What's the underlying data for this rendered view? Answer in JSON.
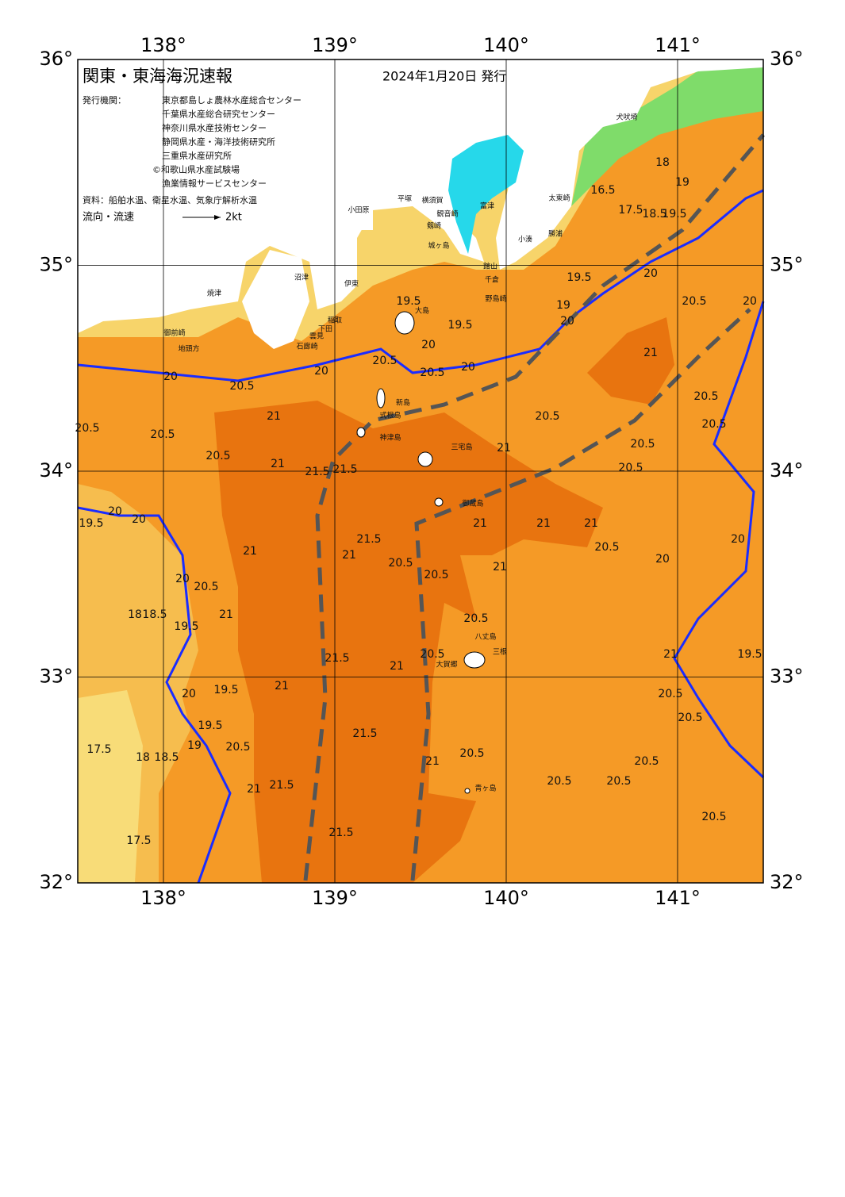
{
  "header": {
    "title": "関東・東海海況速報",
    "date": "2024年1月20日 発行",
    "issuer_label": "発行機関：",
    "issuers": [
      "東京都島しょ農林水産総合センター",
      "千葉県水産総合研究センター",
      "神奈川県水産技術センター",
      "静岡県水産・海洋技術研究所",
      "三重県水産研究所",
      "©和歌山県水産試験場",
      "漁業情報サービスセンター"
    ],
    "source": "資料：船舶水温、衛星水温、気象庁解析水温",
    "flow_label": "流向・流速",
    "flow_scale": "2kt"
  },
  "axes": {
    "xlim": [
      137.5,
      141.5
    ],
    "ylim": [
      32,
      36
    ],
    "xticks": [
      {
        "value": 138,
        "label": "138°"
      },
      {
        "value": 139,
        "label": "139°"
      },
      {
        "value": 140,
        "label": "140°"
      },
      {
        "value": 141,
        "label": "141°"
      }
    ],
    "yticks": [
      {
        "value": 32,
        "label": "32°"
      },
      {
        "value": 33,
        "label": "33°"
      },
      {
        "value": 34,
        "label": "34°"
      },
      {
        "value": 35,
        "label": "35°"
      },
      {
        "value": 36,
        "label": "36°"
      }
    ]
  },
  "places": [
    "大島",
    "新島",
    "式根島",
    "神津島",
    "三宅島",
    "御蔵島",
    "八丈島",
    "三根",
    "大賀郷",
    "青ヶ島",
    "小田原",
    "平塚",
    "横須賀",
    "観音崎",
    "富津",
    "剱崎",
    "城ヶ島",
    "館山",
    "千倉",
    "野島崎",
    "小湊",
    "勝浦",
    "太東崎",
    "犬吠埼",
    "沼津",
    "伊東",
    "焼津",
    "御前崎",
    "地頭方",
    "稲取",
    "下田",
    "雲見",
    "石廊崎"
  ],
  "contour_labels": [
    20,
    20.5,
    20.5,
    20.5,
    20.5,
    21,
    21.5,
    21.5,
    21,
    20,
    20.5,
    19.5,
    19.5,
    20.5,
    20,
    20,
    20.5,
    21,
    20.5,
    20.5,
    21,
    20.5,
    20.5,
    20.5,
    19,
    20,
    20,
    20,
    19.5,
    20,
    21,
    21,
    21.5,
    20.5,
    20.5,
    21,
    21,
    21,
    21,
    20.5,
    20,
    20,
    20.5,
    20,
    19.5,
    18,
    18.5,
    21,
    21.5,
    21,
    20.5,
    20.5,
    21,
    19.5,
    20,
    19.5,
    19,
    20.5,
    18,
    18.5,
    17.5,
    17.5,
    21.5,
    21.5,
    21,
    21.5,
    21,
    20.5,
    20.5,
    20.5,
    20.5,
    20.5,
    20.5,
    20.5,
    19.5,
    21,
    18,
    19,
    16.5,
    17.5,
    18.5,
    19.5,
    20,
    19.5
  ]
}
